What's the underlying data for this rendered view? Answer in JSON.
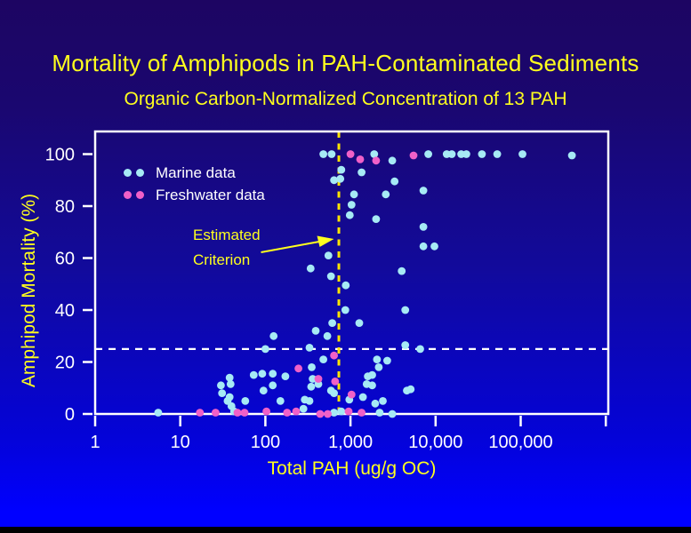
{
  "title": "Mortality of Amphipods in PAH-Contaminated Sediments",
  "subtitle": "Organic Carbon-Normalized Concentration of 13 PAH",
  "annotation": {
    "line1": "Estimated",
    "line2": "Criterion"
  },
  "legend": {
    "items": [
      {
        "label": "Marine data",
        "color": "#a6eaf5"
      },
      {
        "label": "Freshwater data",
        "color": "#f060c8"
      }
    ]
  },
  "colors": {
    "background_top": "#1d0562",
    "background_bottom": "#0000ff",
    "title_text": "#ffff1e",
    "axis_title_text": "#ffff1e",
    "tick_label": "#ffffff",
    "frame": "#ffffff",
    "marine": "#a6eaf5",
    "freshwater": "#f060c8",
    "criterion_line": "#ffe500",
    "threshold_line": "#ffffff",
    "annotation_arrow": "#ffff1e",
    "bottom_bar": "#000000"
  },
  "chart_data": {
    "type": "scatter",
    "title": "Mortality of Amphipods in PAH-Contaminated Sediments",
    "subtitle": "Organic Carbon-Normalized Concentration of 13 PAH",
    "xlabel": "Total PAH (ug/g OC)",
    "ylabel": "Amphipod Mortality (%)",
    "x_scale": "log",
    "xlim": [
      1,
      1000000
    ],
    "ylim": [
      0,
      108
    ],
    "grid": false,
    "legend_position": "upper-left-inside",
    "x_ticks": [
      "1",
      "10",
      "100",
      "1,000",
      "10,000",
      "100,000"
    ],
    "x_tick_values": [
      1,
      10,
      100,
      1000,
      10000,
      100000
    ],
    "x_minor_ticks": [
      1000000
    ],
    "y_ticks": [
      0,
      20,
      40,
      60,
      80,
      100
    ],
    "criterion_x": 730,
    "threshold_y": 25,
    "series": [
      {
        "name": "Marine data",
        "color": "#a6eaf5",
        "points": [
          [
            480,
            100
          ],
          [
            600,
            100
          ],
          [
            1900,
            100
          ],
          [
            8200,
            100
          ],
          [
            13500,
            100
          ],
          [
            15500,
            100
          ],
          [
            20000,
            100
          ],
          [
            23000,
            100
          ],
          [
            35000,
            100
          ],
          [
            53000,
            100
          ],
          [
            105000,
            100
          ],
          [
            400000,
            99.5
          ],
          [
            3100,
            97.5
          ],
          [
            780,
            94
          ],
          [
            640,
            90
          ],
          [
            760,
            90.5
          ],
          [
            1350,
            93
          ],
          [
            3300,
            89.5
          ],
          [
            1100,
            84.5
          ],
          [
            2600,
            84.5
          ],
          [
            7200,
            86
          ],
          [
            1030,
            80.5
          ],
          [
            980,
            76.5
          ],
          [
            2000,
            75
          ],
          [
            7200,
            72
          ],
          [
            7200,
            64.5
          ],
          [
            9700,
            64.5
          ],
          [
            550,
            61
          ],
          [
            340,
            56
          ],
          [
            590,
            53
          ],
          [
            880,
            49.5
          ],
          [
            4000,
            55
          ],
          [
            870,
            40
          ],
          [
            4400,
            40
          ],
          [
            610,
            35
          ],
          [
            1270,
            35
          ],
          [
            390,
            32
          ],
          [
            535,
            30
          ],
          [
            125,
            30
          ],
          [
            100,
            25
          ],
          [
            330,
            25.5
          ],
          [
            4400,
            26.5
          ],
          [
            6600,
            25
          ],
          [
            350,
            18
          ],
          [
            480,
            21
          ],
          [
            2050,
            21
          ],
          [
            2150,
            18
          ],
          [
            2700,
            20.5
          ],
          [
            73,
            15
          ],
          [
            92,
            15.5
          ],
          [
            122,
            15.5
          ],
          [
            172,
            14.5
          ],
          [
            1600,
            14.5
          ],
          [
            1800,
            15
          ],
          [
            30,
            11
          ],
          [
            31,
            8
          ],
          [
            38,
            14
          ],
          [
            39,
            11.5
          ],
          [
            36,
            5
          ],
          [
            38,
            6.5
          ],
          [
            40,
            3
          ],
          [
            43,
            1
          ],
          [
            58,
            5
          ],
          [
            95,
            9
          ],
          [
            122,
            11
          ],
          [
            150,
            5
          ],
          [
            290,
            5.5
          ],
          [
            330,
            5
          ],
          [
            345,
            10.5
          ],
          [
            360,
            13.5
          ],
          [
            420,
            11.5
          ],
          [
            590,
            9
          ],
          [
            640,
            8
          ],
          [
            970,
            5.5
          ],
          [
            1400,
            6.5
          ],
          [
            1550,
            11.5
          ],
          [
            1800,
            11
          ],
          [
            1950,
            4
          ],
          [
            2400,
            5
          ],
          [
            4600,
            9
          ],
          [
            5100,
            9.5
          ],
          [
            5.5,
            0.5
          ],
          [
            280,
            2
          ],
          [
            640,
            0.5
          ],
          [
            780,
            1
          ],
          [
            2200,
            0.5
          ],
          [
            3100,
            0
          ]
        ]
      },
      {
        "name": "Freshwater data",
        "color": "#f060c8",
        "points": [
          [
            1000,
            100
          ],
          [
            1300,
            98
          ],
          [
            2000,
            97.5
          ],
          [
            5500,
            99.5
          ],
          [
            640,
            22.5
          ],
          [
            245,
            17.5
          ],
          [
            420,
            13.5
          ],
          [
            660,
            12.5
          ],
          [
            1030,
            7.5
          ],
          [
            17,
            0.5
          ],
          [
            26,
            0.5
          ],
          [
            47,
            0.5
          ],
          [
            57,
            0.5
          ],
          [
            103,
            1
          ],
          [
            180,
            0.5
          ],
          [
            230,
            1
          ],
          [
            440,
            0
          ],
          [
            540,
            0
          ],
          [
            950,
            1
          ],
          [
            1350,
            0.5
          ]
        ]
      }
    ]
  }
}
